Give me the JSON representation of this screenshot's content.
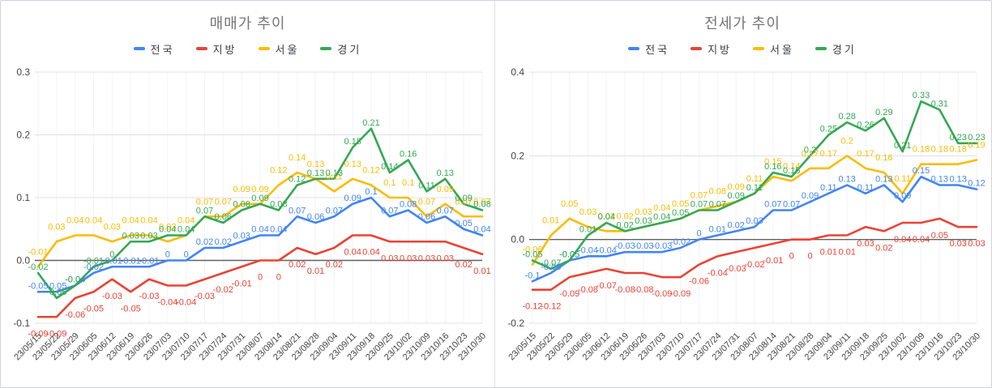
{
  "page": {
    "background": "#ffffff",
    "border_color": "#cfd4d9",
    "divider_color": "#e0e0e0",
    "grid_color": "#e0e0e0",
    "minor_grid_color": "#f3f3f3",
    "zero_line_color": "#616161",
    "axis_text_color": "#444444",
    "title_color": "#757575"
  },
  "chart_data": [
    {
      "type": "line",
      "title": "매매가 추이",
      "legend_position": "top",
      "grid": true,
      "ylim": [
        -0.1,
        0.3
      ],
      "y_ticks": [
        {
          "label": "0.3",
          "value": 0.3
        },
        {
          "label": "0.2",
          "value": 0.2
        },
        {
          "label": "0.1",
          "value": 0.1
        },
        {
          "label": "0.0",
          "value": 0.0
        },
        {
          "label": "-0.1",
          "value": -0.1
        }
      ],
      "categories": [
        "23/05/15",
        "23/05/22",
        "23/05/29",
        "23/06/05",
        "23/06/12",
        "23/06/19",
        "23/06/26",
        "23/07/03",
        "23/07/10",
        "23/07/17",
        "23/07/24",
        "23/07/31",
        "23/08/07",
        "23/08/14",
        "23/08/21",
        "23/08/28",
        "23/09/04",
        "23/09/11",
        "23/09/18",
        "23/09/25",
        "23/10/02",
        "23/10/09",
        "23/10/16",
        "23/10/23",
        "23/10/30"
      ],
      "series": [
        {
          "name": "전국",
          "color": "#4285F4",
          "label_side": "above",
          "values": [
            -0.05,
            -0.05,
            -0.04,
            -0.02,
            -0.01,
            -0.01,
            -0.01,
            0,
            0,
            0.02,
            0.02,
            0.03,
            0.04,
            0.04,
            0.07,
            0.06,
            0.07,
            0.09,
            0.1,
            0.07,
            0.08,
            0.06,
            0.07,
            0.05,
            0.04
          ]
        },
        {
          "name": "지방",
          "color": "#EA4335",
          "label_side": "below",
          "values": [
            -0.09,
            -0.09,
            -0.06,
            -0.05,
            -0.03,
            -0.05,
            -0.03,
            -0.04,
            -0.04,
            -0.03,
            -0.02,
            -0.01,
            0,
            0,
            0.02,
            0.01,
            0.02,
            0.04,
            0.04,
            0.03,
            0.03,
            0.03,
            0.03,
            0.02,
            0.01
          ]
        },
        {
          "name": "서울",
          "color": "#FBBC04",
          "label_side": "high",
          "values": [
            -0.01,
            0.03,
            0.04,
            0.04,
            0.03,
            0.04,
            0.04,
            0.03,
            0.04,
            0.07,
            0.07,
            0.09,
            0.09,
            0.12,
            0.14,
            0.13,
            0.11,
            0.13,
            0.12,
            0.1,
            0.1,
            0.07,
            0.09,
            0.07,
            0.07
          ]
        },
        {
          "name": "경기",
          "color": "#34A853",
          "label_side": "above",
          "values": [
            -0.02,
            -0.06,
            -0.04,
            -0.01,
            0,
            0.03,
            0.03,
            0.04,
            0.04,
            0.07,
            0.06,
            0.08,
            0.09,
            0.08,
            0.12,
            0.13,
            0.13,
            0.18,
            0.21,
            0.14,
            0.16,
            0.11,
            0.13,
            0.09,
            0.08
          ]
        }
      ]
    },
    {
      "type": "line",
      "title": "전세가 추이",
      "legend_position": "top",
      "grid": true,
      "ylim": [
        -0.2,
        0.4
      ],
      "y_ticks": [
        {
          "label": "0.4",
          "value": 0.4
        },
        {
          "label": "0.2",
          "value": 0.2
        },
        {
          "label": "0.0",
          "value": 0.0
        },
        {
          "label": "-0.2",
          "value": -0.2
        }
      ],
      "categories": [
        "23/05/15",
        "23/05/22",
        "23/05/29",
        "23/06/05",
        "23/06/12",
        "23/06/19",
        "23/06/26",
        "23/07/03",
        "23/07/10",
        "23/07/17",
        "23/07/24",
        "23/07/31",
        "23/08/07",
        "23/08/14",
        "23/08/21",
        "23/08/28",
        "23/09/04",
        "23/09/11",
        "23/09/18",
        "23/09/25",
        "23/10/02",
        "23/10/09",
        "23/10/16",
        "23/10/23",
        "23/10/30"
      ],
      "series": [
        {
          "name": "전국",
          "color": "#4285F4",
          "label_side": "above",
          "values": [
            -0.1,
            -0.08,
            -0.05,
            -0.04,
            -0.04,
            -0.03,
            -0.03,
            -0.03,
            -0.02,
            0,
            0.01,
            0.02,
            0.03,
            0.07,
            0.07,
            0.09,
            0.11,
            0.13,
            0.11,
            0.13,
            0.09,
            0.15,
            0.13,
            0.13,
            0.12
          ]
        },
        {
          "name": "지방",
          "color": "#EA4335",
          "label_side": "below",
          "values": [
            -0.12,
            -0.12,
            -0.09,
            -0.08,
            -0.07,
            -0.08,
            -0.08,
            -0.09,
            -0.09,
            -0.06,
            -0.04,
            -0.03,
            -0.02,
            -0.01,
            0,
            0,
            0.01,
            0.01,
            0.03,
            0.02,
            0.04,
            0.04,
            0.05,
            0.03,
            0.03
          ]
        },
        {
          "name": "서울",
          "color": "#FBBC04",
          "label_side": "high",
          "values": [
            -0.06,
            0.01,
            0.05,
            0.03,
            0.02,
            0.02,
            0.03,
            0.04,
            0.05,
            0.07,
            0.08,
            0.09,
            0.11,
            0.15,
            0.14,
            0.17,
            0.17,
            0.2,
            0.17,
            0.16,
            0.11,
            0.18,
            0.18,
            0.18,
            0.19
          ]
        },
        {
          "name": "경기",
          "color": "#34A853",
          "label_side": "above",
          "values": [
            -0.05,
            -0.07,
            -0.05,
            0.01,
            0.04,
            0.02,
            0.03,
            0.04,
            0.05,
            0.07,
            0.07,
            0.09,
            0.11,
            0.16,
            0.15,
            0.2,
            0.25,
            0.28,
            0.26,
            0.29,
            0.21,
            0.33,
            0.31,
            0.23,
            0.23
          ]
        }
      ]
    }
  ]
}
